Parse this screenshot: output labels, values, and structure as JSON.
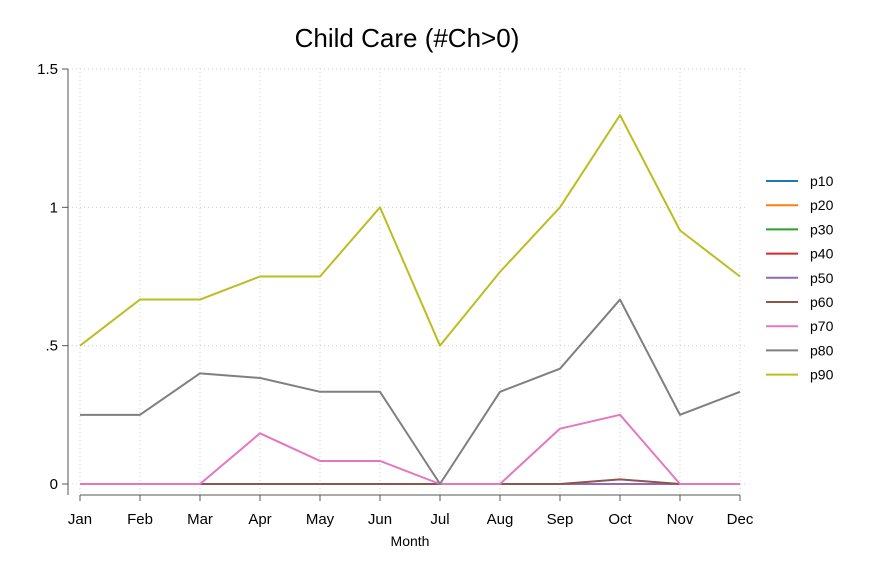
{
  "chart_data": {
    "type": "line",
    "title": "Child Care (#Ch>0)",
    "xlabel": "Month",
    "ylabel": "",
    "categories": [
      "Jan",
      "Feb",
      "Mar",
      "Apr",
      "May",
      "Jun",
      "Jul",
      "Aug",
      "Sep",
      "Oct",
      "Nov",
      "Dec"
    ],
    "yticks": [
      0,
      0.5,
      1,
      1.5
    ],
    "ytick_labels": [
      "0",
      ".5",
      "1",
      "1.5"
    ],
    "ylim": [
      0,
      1.5
    ],
    "grid": true,
    "legend_position": "right",
    "series": [
      {
        "name": "p10",
        "color": "#1f77b4",
        "values": [
          0,
          0,
          0,
          0,
          0,
          0,
          0,
          0,
          0,
          0,
          0,
          0
        ]
      },
      {
        "name": "p20",
        "color": "#ff7f0e",
        "values": [
          0,
          0,
          0,
          0,
          0,
          0,
          0,
          0,
          0,
          0,
          0,
          0
        ]
      },
      {
        "name": "p30",
        "color": "#2ca02c",
        "values": [
          0,
          0,
          0,
          0,
          0,
          0,
          0,
          0,
          0,
          0,
          0,
          0
        ]
      },
      {
        "name": "p40",
        "color": "#d62728",
        "values": [
          0,
          0,
          0,
          0,
          0,
          0,
          0,
          0,
          0,
          0,
          0,
          0
        ]
      },
      {
        "name": "p50",
        "color": "#9467bd",
        "values": [
          0,
          0,
          0,
          0,
          0,
          0,
          0,
          0,
          0,
          0,
          0,
          0
        ]
      },
      {
        "name": "p60",
        "color": "#8c564b",
        "values": [
          0,
          0,
          0,
          0,
          0,
          0,
          0,
          0,
          0,
          0.0167,
          0,
          0
        ]
      },
      {
        "name": "p70",
        "color": "#e377c2",
        "values": [
          0,
          0,
          0,
          0.1833,
          0.0833,
          0.0833,
          0,
          0,
          0.2,
          0.25,
          0,
          0
        ]
      },
      {
        "name": "p80",
        "color": "#7f7f7f",
        "values": [
          0.25,
          0.25,
          0.4,
          0.3833,
          0.3333,
          0.3333,
          0,
          0.3333,
          0.4167,
          0.6667,
          0.25,
          0.3333
        ]
      },
      {
        "name": "p90",
        "color": "#bcbd22",
        "values": [
          0.5,
          0.6667,
          0.6667,
          0.75,
          0.75,
          1.0,
          0.5,
          0.7667,
          1.0,
          1.3333,
          0.9167,
          0.75
        ]
      }
    ]
  }
}
